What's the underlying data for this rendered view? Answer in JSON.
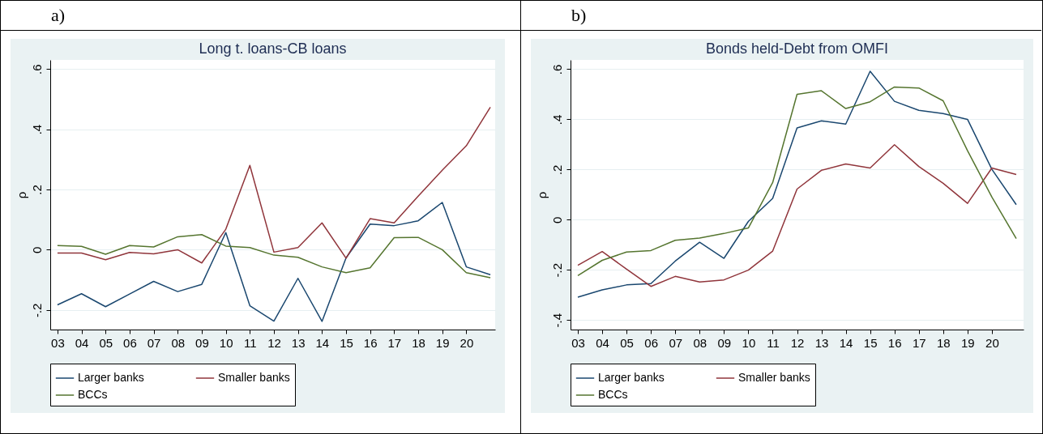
{
  "chart_data": [
    {
      "type": "line",
      "title": "Long t. loans-CB loans",
      "ylabel": "ρ",
      "annotations": [
        "a)"
      ],
      "x": [
        3,
        4,
        5,
        6,
        7,
        8,
        9,
        10,
        11,
        12,
        13,
        14,
        15,
        16,
        17,
        18,
        19,
        20,
        21
      ],
      "xlim": [
        2.7,
        21.2
      ],
      "xticks": [
        {
          "value": 3,
          "label": "03"
        },
        {
          "value": 4,
          "label": "04"
        },
        {
          "value": 5,
          "label": "05"
        },
        {
          "value": 6,
          "label": "06"
        },
        {
          "value": 7,
          "label": "07"
        },
        {
          "value": 8,
          "label": "08"
        },
        {
          "value": 9,
          "label": "09"
        },
        10,
        11,
        12,
        13,
        14,
        15,
        16,
        17,
        18,
        19,
        20
      ],
      "ylim": [
        -0.265,
        0.63
      ],
      "yticks": [
        {
          "value": -0.2,
          "label": "-.2"
        },
        0,
        {
          "value": 0.2,
          "label": ".2"
        },
        {
          "value": 0.4,
          "label": ".4"
        },
        {
          "value": 0.6,
          "label": ".6"
        }
      ],
      "grid": "y",
      "legend": "bottom",
      "series": [
        {
          "name": "Larger banks",
          "color": "#1a476f",
          "values": [
            -0.183,
            -0.146,
            -0.189,
            -0.147,
            -0.105,
            -0.139,
            -0.115,
            0.057,
            -0.186,
            -0.237,
            -0.095,
            -0.238,
            -0.027,
            0.085,
            0.08,
            0.096,
            0.157,
            -0.057,
            -0.083
          ]
        },
        {
          "name": "Smaller banks",
          "color": "#90353b",
          "values": [
            -0.011,
            -0.011,
            -0.033,
            -0.009,
            -0.014,
            0.0,
            -0.044,
            0.068,
            0.28,
            -0.008,
            0.007,
            0.089,
            -0.028,
            0.103,
            0.089,
            0.178,
            0.264,
            0.345,
            0.473
          ]
        },
        {
          "name": "BCCs",
          "color": "#55752f",
          "values": [
            0.014,
            0.011,
            -0.015,
            0.014,
            0.009,
            0.043,
            0.05,
            0.012,
            0.007,
            -0.018,
            -0.025,
            -0.057,
            -0.076,
            -0.06,
            0.04,
            0.041,
            0.0,
            -0.076,
            -0.093
          ]
        }
      ]
    },
    {
      "type": "line",
      "title": "Bonds held-Debt from OMFI",
      "ylabel": "ρ",
      "annotations": [
        "b)"
      ],
      "x": [
        3,
        4,
        5,
        6,
        7,
        8,
        9,
        10,
        11,
        12,
        13,
        14,
        15,
        16,
        17,
        18,
        19,
        20,
        21
      ],
      "xlim": [
        2.7,
        21.3
      ],
      "xticks": [
        {
          "value": 3,
          "label": "03"
        },
        {
          "value": 4,
          "label": "04"
        },
        {
          "value": 5,
          "label": "05"
        },
        {
          "value": 6,
          "label": "06"
        },
        {
          "value": 7,
          "label": "07"
        },
        {
          "value": 8,
          "label": "08"
        },
        {
          "value": 9,
          "label": "09"
        },
        10,
        11,
        12,
        13,
        14,
        15,
        16,
        17,
        18,
        19,
        20
      ],
      "ylim": [
        -0.438,
        0.637
      ],
      "yticks": [
        {
          "value": -0.4,
          "label": "-.4"
        },
        {
          "value": -0.2,
          "label": "-.2"
        },
        0,
        {
          "value": 0.2,
          "label": ".2"
        },
        {
          "value": 0.4,
          "label": ".4"
        },
        {
          "value": 0.6,
          "label": ".6"
        }
      ],
      "grid": "y",
      "legend": "bottom",
      "series": [
        {
          "name": "Larger banks",
          "color": "#1a476f",
          "values": [
            -0.309,
            -0.28,
            -0.26,
            -0.255,
            -0.165,
            -0.09,
            -0.154,
            -0.007,
            0.085,
            0.366,
            0.394,
            0.381,
            0.592,
            0.472,
            0.436,
            0.423,
            0.4,
            0.201,
            0.06
          ]
        },
        {
          "name": "Smaller banks",
          "color": "#90353b",
          "values": [
            -0.182,
            -0.127,
            -0.197,
            -0.266,
            -0.226,
            -0.248,
            -0.24,
            -0.201,
            -0.125,
            0.122,
            0.197,
            0.222,
            0.206,
            0.299,
            0.212,
            0.145,
            0.065,
            0.206,
            0.18
          ]
        },
        {
          "name": "BCCs",
          "color": "#55752f",
          "values": [
            -0.223,
            -0.162,
            -0.129,
            -0.123,
            -0.082,
            -0.073,
            -0.055,
            -0.033,
            0.148,
            0.5,
            0.514,
            0.443,
            0.47,
            0.529,
            0.525,
            0.474,
            0.275,
            0.09,
            -0.075
          ]
        }
      ]
    }
  ]
}
